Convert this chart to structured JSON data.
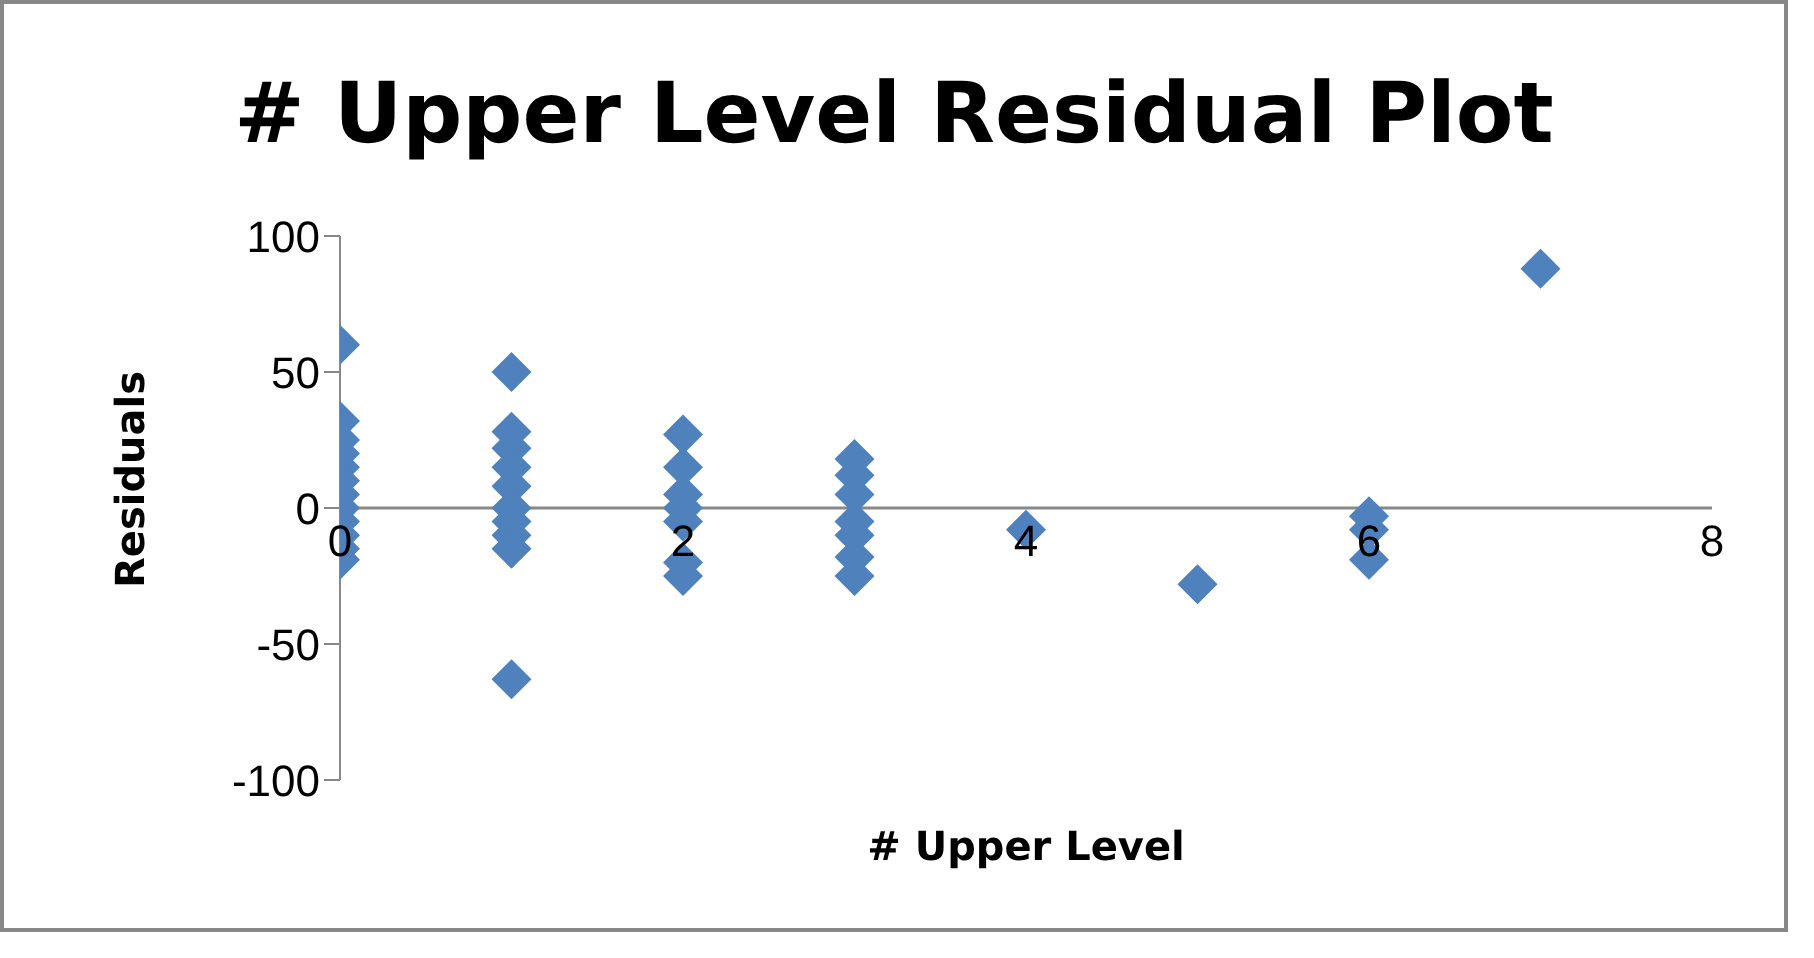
{
  "chart_data": {
    "type": "scatter",
    "title": "# Upper Level  Residual Plot",
    "xlabel": "# Upper Level",
    "ylabel": "Residuals",
    "x": [
      0,
      0,
      0,
      0,
      0,
      0,
      0,
      0,
      0,
      0,
      0,
      0,
      1,
      1,
      1,
      1,
      1,
      1,
      1,
      1,
      1,
      1,
      2,
      2,
      2,
      2,
      2,
      2,
      2,
      3,
      3,
      3,
      3,
      3,
      3,
      3,
      4,
      5,
      6,
      6,
      6,
      7
    ],
    "series": [
      {
        "color": "#4f81bd",
        "values": [
          60,
          32,
          25,
          20,
          15,
          10,
          5,
          0,
          -5,
          -10,
          -15,
          -19,
          50,
          28,
          22,
          15,
          8,
          0,
          -5,
          -10,
          -15,
          -63,
          27,
          15,
          5,
          0,
          -5,
          -20,
          -25,
          18,
          12,
          5,
          -5,
          -10,
          -18,
          -25,
          -8,
          -28,
          -3,
          -8,
          -19,
          88
        ]
      }
    ],
    "xlim": [
      0,
      8
    ],
    "xticks": [
      0,
      2,
      4,
      6,
      8
    ],
    "ylim": [
      -100,
      100
    ],
    "yticks": [
      -100,
      -50,
      0,
      50,
      100
    ],
    "grid": false,
    "marker": "diamond"
  }
}
